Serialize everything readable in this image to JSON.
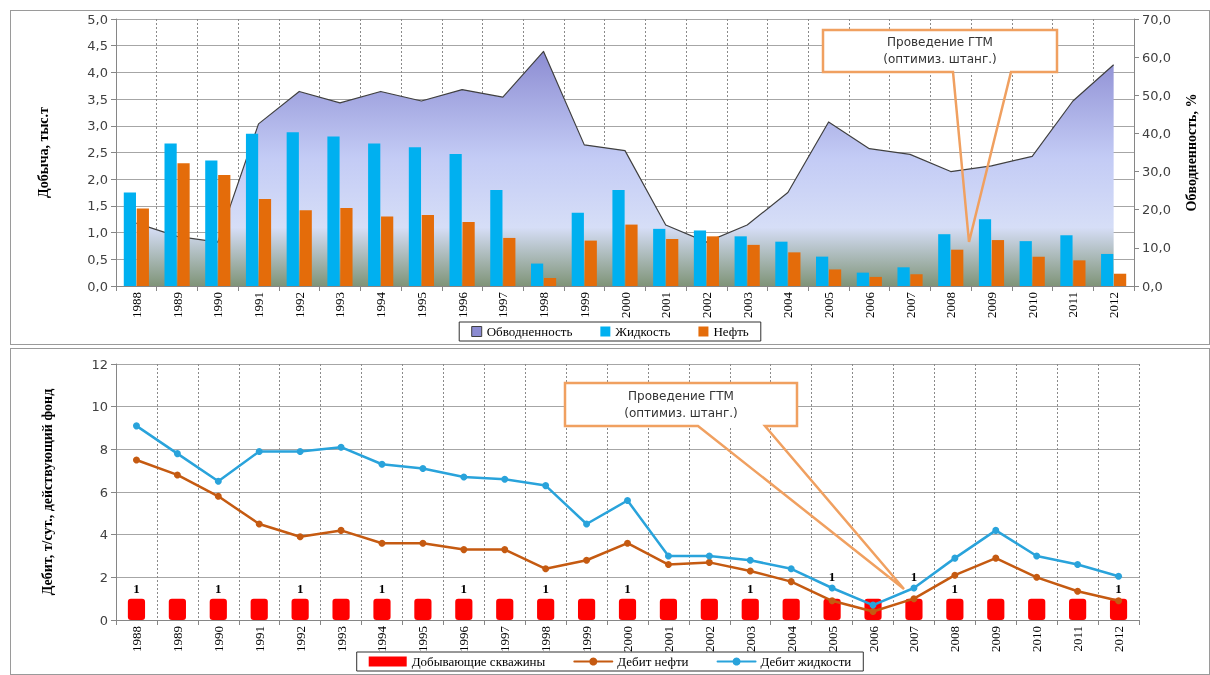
{
  "chart_data": [
    {
      "type": "bar",
      "ylabel": "Добыча, тыс.т",
      "y2label": "Обводненность, %",
      "categories": [
        "1988",
        "1989",
        "1990",
        "1991",
        "1992",
        "1993",
        "1994",
        "1995",
        "1996",
        "1997",
        "1998",
        "1999",
        "2000",
        "2001",
        "2002",
        "2003",
        "2004",
        "2005",
        "2006",
        "2007",
        "2008",
        "2009",
        "2010",
        "2011",
        "2012"
      ],
      "series": [
        {
          "name": "Обводненность",
          "type": "area",
          "axis": "y2",
          "color": "#8c8cd2",
          "values": [
            16.5,
            13,
            11.5,
            42.5,
            51,
            48,
            51,
            48.5,
            51.5,
            49.5,
            61.5,
            37,
            35.5,
            16,
            11.5,
            16,
            24.5,
            43,
            36,
            34.5,
            30,
            31.5,
            34,
            48.5,
            58
          ]
        },
        {
          "name": "Жидкость",
          "color": "#00b0f0",
          "values": [
            1.75,
            2.67,
            2.35,
            2.85,
            2.88,
            2.8,
            2.67,
            2.6,
            2.47,
            1.8,
            0.42,
            1.37,
            1.8,
            1.07,
            1.04,
            0.93,
            0.83,
            0.55,
            0.25,
            0.35,
            0.97,
            1.25,
            0.84,
            0.95,
            0.6
          ]
        },
        {
          "name": "Нефть",
          "color": "#e46c0a",
          "values": [
            1.45,
            2.3,
            2.08,
            1.63,
            1.42,
            1.46,
            1.3,
            1.33,
            1.2,
            0.9,
            0.15,
            0.85,
            1.15,
            0.88,
            0.93,
            0.77,
            0.63,
            0.31,
            0.17,
            0.22,
            0.68,
            0.86,
            0.55,
            0.48,
            0.23
          ]
        }
      ],
      "ylim": [
        0,
        5
      ],
      "yticks": [
        {
          "value": 0,
          "label": "0,0"
        },
        {
          "value": 0.5,
          "label": "0,5"
        },
        {
          "value": 1,
          "label": "1,0"
        },
        {
          "value": 1.5,
          "label": "1,5"
        },
        {
          "value": 2,
          "label": "2,0"
        },
        {
          "value": 2.5,
          "label": "2,5"
        },
        {
          "value": 3,
          "label": "3,0"
        },
        {
          "value": 3.5,
          "label": "3,5"
        },
        {
          "value": 4,
          "label": "4,0"
        },
        {
          "value": 4.5,
          "label": "4,5"
        },
        {
          "value": 5,
          "label": "5,0"
        }
      ],
      "y2lim": [
        0,
        70
      ],
      "y2ticks": [
        {
          "value": 0,
          "label": "0,0"
        },
        {
          "value": 10,
          "label": "10,0"
        },
        {
          "value": 20,
          "label": "20,0"
        },
        {
          "value": 30,
          "label": "30,0"
        },
        {
          "value": 40,
          "label": "40,0"
        },
        {
          "value": 50,
          "label": "50,0"
        },
        {
          "value": 60,
          "label": "60,0"
        },
        {
          "value": 70,
          "label": "70,0"
        }
      ],
      "grid": true,
      "legend": "bottom",
      "annotations": [
        "Проведение ГТМ\n(оптимиз. штанг.)"
      ]
    },
    {
      "type": "line",
      "ylabel": "Дебит, т/сут., действующий фонд",
      "categories": [
        "1988",
        "1989",
        "1990",
        "1991",
        "1992",
        "1993",
        "1994",
        "1995",
        "1996",
        "1997",
        "1998",
        "1999",
        "2000",
        "2001",
        "2002",
        "2003",
        "2004",
        "2005",
        "2006",
        "2007",
        "2008",
        "2009",
        "2010",
        "2011",
        "2012"
      ],
      "series": [
        {
          "name": "Добывающие скважины",
          "type": "bar",
          "color": "#ff0000",
          "values": [
            1,
            1,
            1,
            1,
            1,
            1,
            1,
            1,
            1,
            1,
            1,
            1,
            1,
            1,
            1,
            1,
            1,
            1,
            1,
            1,
            1,
            1,
            1,
            1,
            1
          ],
          "value_labels": [
            "1",
            null,
            "1",
            null,
            "1",
            null,
            "1",
            null,
            "1",
            null,
            "1",
            null,
            "1",
            null,
            null,
            "1",
            null,
            "1",
            null,
            "1",
            "1",
            null,
            null,
            null,
            "1"
          ]
        },
        {
          "name": "Дебит нефти",
          "color": "#c55a11",
          "values": [
            7.5,
            6.8,
            5.8,
            4.5,
            3.9,
            4.2,
            3.6,
            3.6,
            3.3,
            3.3,
            2.4,
            2.8,
            3.6,
            2.6,
            2.7,
            2.3,
            1.8,
            0.9,
            0.4,
            1,
            2.1,
            2.9,
            2,
            1.35,
            0.9
          ]
        },
        {
          "name": "Дебит жидкости",
          "color": "#29a3db",
          "values": [
            9.1,
            7.8,
            6.5,
            7.9,
            7.9,
            8.1,
            7.3,
            7.1,
            6.7,
            6.6,
            6.3,
            4.5,
            5.6,
            3,
            3,
            2.8,
            2.4,
            1.5,
            0.7,
            1.5,
            2.9,
            4.2,
            3,
            2.6,
            2.05
          ]
        }
      ],
      "ylim": [
        0,
        12
      ],
      "yticks": [
        0,
        2,
        4,
        6,
        8,
        10,
        12
      ],
      "grid": true,
      "legend": "bottom",
      "marker": "circle",
      "annotations": [
        "Проведение ГТМ\n(оптимиз. штанг.)"
      ]
    }
  ]
}
